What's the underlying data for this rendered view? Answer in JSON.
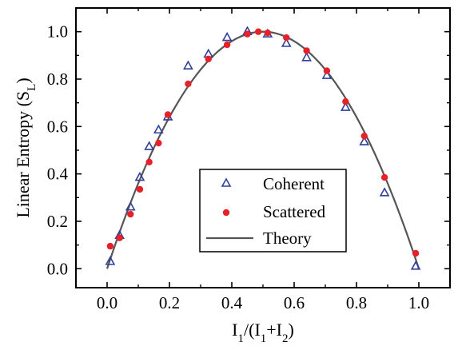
{
  "chart_data": {
    "type": "scatter",
    "xlabel": {
      "main": "I",
      "sub1": "1",
      "mid": "/(I",
      "sub2": "1",
      "plus": "+I",
      "sub3": "2",
      "end": ")"
    },
    "ylabel": {
      "main": "Linear Entropy (S",
      "sub": "L",
      "end": ")"
    },
    "xlim": [
      -0.1,
      1.1
    ],
    "ylim": [
      -0.08,
      1.1
    ],
    "x_ticks": [
      0.0,
      0.2,
      0.4,
      0.6,
      0.8,
      1.0
    ],
    "x_tick_labels": [
      "0.0",
      "0.2",
      "0.4",
      "0.6",
      "0.8",
      "1.0"
    ],
    "y_ticks": [
      0.0,
      0.2,
      0.4,
      0.6,
      0.8,
      1.0
    ],
    "y_tick_labels": [
      "0.0",
      "0.2",
      "0.4",
      "0.6",
      "0.8",
      "1.0"
    ],
    "legend_position": "center-right",
    "grid": false,
    "series": [
      {
        "name": "Coherent",
        "marker": "open-triangle",
        "color": "#2f3f9a",
        "x": [
          0.01,
          0.04,
          0.075,
          0.105,
          0.135,
          0.165,
          0.195,
          0.26,
          0.325,
          0.385,
          0.45,
          0.515,
          0.575,
          0.64,
          0.705,
          0.765,
          0.825,
          0.89,
          0.99
        ],
        "y": [
          0.03,
          0.14,
          0.26,
          0.385,
          0.515,
          0.585,
          0.64,
          0.855,
          0.905,
          0.975,
          1.0,
          0.99,
          0.95,
          0.89,
          0.815,
          0.68,
          0.535,
          0.32,
          0.01
        ]
      },
      {
        "name": "Scattered",
        "marker": "filled-circle",
        "color": "#e8202a",
        "x": [
          0.01,
          0.04,
          0.075,
          0.105,
          0.135,
          0.165,
          0.195,
          0.26,
          0.325,
          0.385,
          0.45,
          0.485,
          0.515,
          0.575,
          0.64,
          0.705,
          0.765,
          0.825,
          0.89,
          0.99
        ],
        "y": [
          0.095,
          0.13,
          0.23,
          0.335,
          0.45,
          0.53,
          0.65,
          0.78,
          0.885,
          0.945,
          0.99,
          1.0,
          0.995,
          0.975,
          0.92,
          0.835,
          0.705,
          0.56,
          0.385,
          0.065
        ]
      },
      {
        "name": "Theory",
        "marker": "line",
        "color": "#555555",
        "function": "4x(1-x)",
        "x_range": [
          0.0,
          1.0
        ]
      }
    ]
  }
}
